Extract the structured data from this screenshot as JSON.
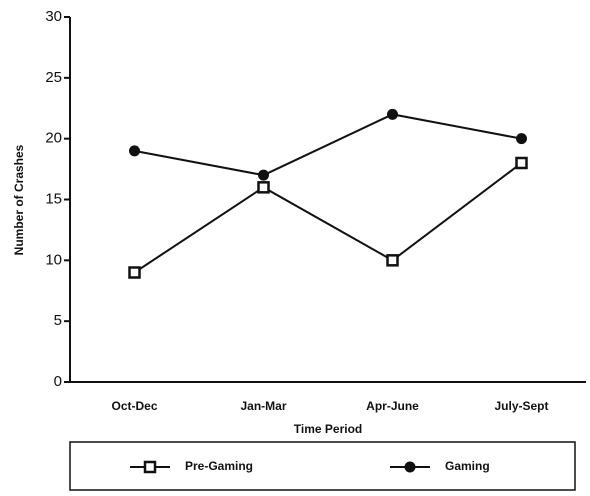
{
  "chart_data": {
    "type": "line",
    "categories": [
      "Oct-Dec",
      "Jan-Mar",
      "Apr-June",
      "July-Sept"
    ],
    "series": [
      {
        "name": "Pre-Gaming",
        "color": "#111111",
        "marker": "square",
        "values": [
          9,
          16,
          10,
          18
        ]
      },
      {
        "name": "Gaming",
        "color": "#111111",
        "marker": "circle",
        "values": [
          19,
          17,
          22,
          20
        ]
      }
    ],
    "ylim": [
      0,
      30
    ],
    "yticks": [
      0,
      5,
      10,
      15,
      20,
      25,
      30
    ],
    "y_label": "Number of Crashes",
    "x_label": "Time Period",
    "legend": "bottom"
  }
}
